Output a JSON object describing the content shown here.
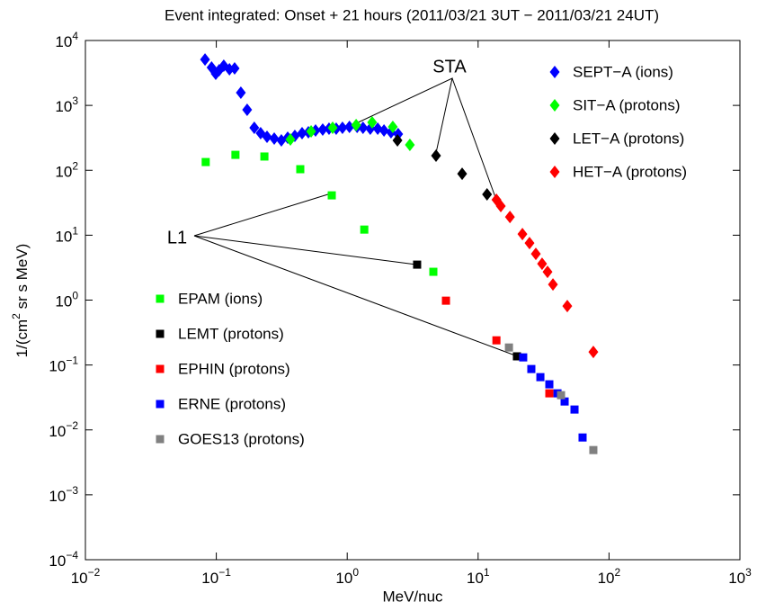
{
  "chart_data": {
    "type": "scatter",
    "title": "Event integrated: Onset + 21 hours (2011/03/21 3UT − 2011/03/21 24UT)",
    "x_label": "MeV/nuc",
    "y_label": "1/(cm^2 sr s MeV)",
    "xscale": "log",
    "yscale": "log",
    "xlim": [
      0.01,
      1000
    ],
    "ylim": [
      0.0001,
      10000
    ],
    "xticks": [
      {
        "value": 0.01,
        "label": "10^−2"
      },
      {
        "value": 0.1,
        "label": "10^−1"
      },
      {
        "value": 1,
        "label": "10^0"
      },
      {
        "value": 10,
        "label": "10^1"
      },
      {
        "value": 100,
        "label": "10^2"
      },
      {
        "value": 1000,
        "label": "10^3"
      }
    ],
    "yticks": [
      {
        "value": 0.0001,
        "label": "10^−4"
      },
      {
        "value": 0.001,
        "label": "10^−3"
      },
      {
        "value": 0.01,
        "label": "10^−2"
      },
      {
        "value": 0.1,
        "label": "10^−1"
      },
      {
        "value": 1,
        "label": "10^0"
      },
      {
        "value": 10,
        "label": "10^1"
      },
      {
        "value": 100,
        "label": "10^2"
      },
      {
        "value": 1000,
        "label": "10^3"
      },
      {
        "value": 10000,
        "label": "10^4"
      }
    ],
    "annotations": [
      "STA",
      "L1"
    ],
    "legend": [
      {
        "marker": "diamond",
        "corner": "upper right"
      },
      {
        "marker": "square",
        "corner": "center left"
      }
    ],
    "series": [
      {
        "name": "SEPT−A (ions)",
        "color": "#0000ff",
        "marker": "diamond",
        "x": [
          0.082,
          0.092,
          0.099,
          0.105,
          0.114,
          0.126,
          0.138,
          0.154,
          0.172,
          0.195,
          0.218,
          0.244,
          0.277,
          0.314,
          0.351,
          0.398,
          0.452,
          0.505,
          0.573,
          0.65,
          0.726,
          0.824,
          0.92,
          1.04,
          1.19,
          1.32,
          1.5,
          1.71,
          1.91,
          2.16,
          2.45
        ],
        "values": [
          5100,
          3840,
          3070,
          3480,
          4090,
          3600,
          3720,
          1570,
          855,
          452,
          373,
          328,
          308,
          289,
          318,
          339,
          373,
          385,
          410,
          424,
          437,
          437,
          452,
          467,
          467,
          452,
          437,
          437,
          410,
          385,
          361
        ]
      },
      {
        "name": "SIT−A (protons)",
        "color": "#00ff00",
        "marker": "diamond",
        "x": [
          0.368,
          0.53,
          0.774,
          1.17,
          1.55,
          2.23,
          3.01
        ],
        "values": [
          298,
          397,
          452,
          497,
          547,
          467,
          246
        ]
      },
      {
        "name": "LET−A (protons)",
        "color": "#000000",
        "marker": "diamond",
        "x": [
          2.42,
          4.77,
          7.55,
          11.7
        ],
        "values": [
          289,
          168,
          88.5,
          42.5
        ]
      },
      {
        "name": "HET−A (protons)",
        "color": "#ff0000",
        "marker": "diamond",
        "x": [
          13.8,
          14.9,
          17.5,
          21.8,
          24.7,
          27.6,
          30.8,
          33.9,
          37.3,
          48.0,
          75.9
        ],
        "values": [
          35.1,
          28.1,
          19.1,
          10.4,
          7.57,
          5.16,
          3.63,
          2.72,
          1.74,
          0.81,
          0.159
        ]
      },
      {
        "name": "EPAM (ions)",
        "color": "#00ff00",
        "marker": "square",
        "x": [
          0.083,
          0.14,
          0.233,
          0.438,
          0.762,
          1.35,
          4.55
        ],
        "values": [
          134,
          173,
          163,
          104,
          41.1,
          12.2,
          2.73
        ]
      },
      {
        "name": "LEMT (protons)",
        "color": "#000000",
        "marker": "square",
        "x": [
          3.42,
          19.8
        ],
        "values": [
          3.52,
          0.136
        ]
      },
      {
        "name": "EPHIN (protons)",
        "color": "#ff0000",
        "marker": "square",
        "x": [
          5.68,
          13.8,
          35.0
        ],
        "values": [
          0.98,
          0.24,
          0.0366
        ]
      },
      {
        "name": "ERNE (protons)",
        "color": "#0000ff",
        "marker": "square",
        "x": [
          22.1,
          25.5,
          29.9,
          35.0,
          40.4,
          45.8,
          54.5,
          62.8
        ],
        "values": [
          0.131,
          0.0867,
          0.065,
          0.0504,
          0.0366,
          0.0274,
          0.0206,
          0.00764
        ]
      },
      {
        "name": "GOES13 (protons)",
        "color": "#808080",
        "marker": "square",
        "x": [
          17.2,
          43.0,
          75.9
        ],
        "values": [
          0.186,
          0.0343,
          0.00489
        ]
      }
    ]
  }
}
